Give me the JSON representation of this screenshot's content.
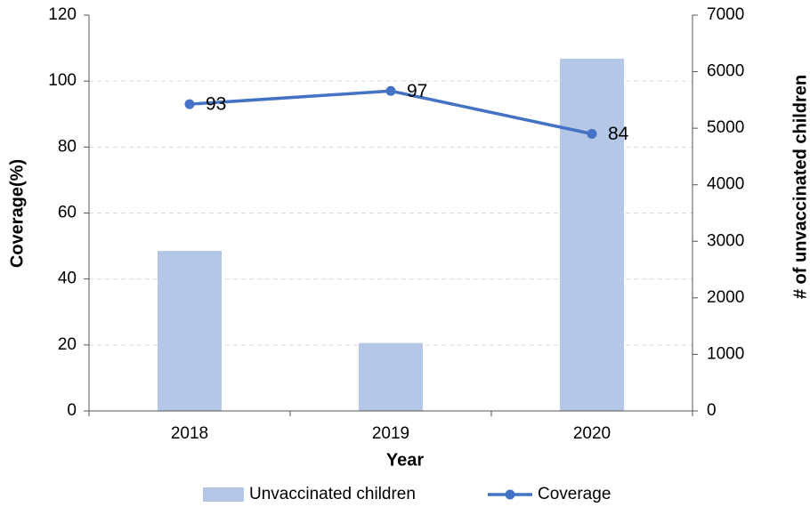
{
  "chart_data": {
    "type": "bar-line",
    "categories": [
      "2018",
      "2019",
      "2020"
    ],
    "series": [
      {
        "name": "Unvaccinated children",
        "color": "#b4c7e7",
        "values": [
          2830,
          1200,
          6230
        ],
        "axis": "y2",
        "kind": "bar"
      },
      {
        "name": "Coverage",
        "color": "#4472c4",
        "values": [
          93,
          97,
          84
        ],
        "kind": "line"
      }
    ],
    "xlabel": "Year",
    "ylabel": "Coverage(%)",
    "y2label": "# of unvaccinated children",
    "ylim": [
      0,
      120
    ],
    "yticks": [
      0,
      20,
      40,
      60,
      80,
      100,
      120
    ],
    "y2lim": [
      0,
      7000
    ],
    "y2ticks": [
      0,
      1000,
      2000,
      3000,
      4000,
      5000,
      6000,
      7000
    ],
    "grid": true,
    "legend": "bottom"
  }
}
